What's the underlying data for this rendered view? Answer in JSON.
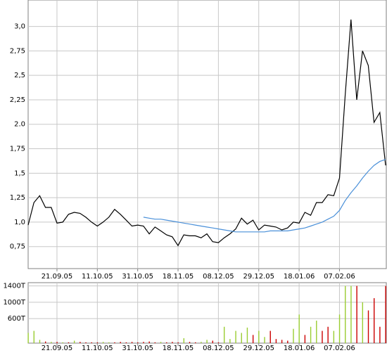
{
  "chart_data": [
    {
      "type": "line",
      "categories": [
        null,
        null,
        null,
        null,
        null,
        "21.09.05",
        null,
        null,
        null,
        null,
        null,
        null,
        "11.10.05",
        null,
        null,
        null,
        null,
        null,
        null,
        "31.10.05",
        null,
        null,
        null,
        null,
        null,
        null,
        "18.11.05",
        null,
        null,
        null,
        null,
        null,
        null,
        "08.12.05",
        null,
        null,
        null,
        null,
        null,
        null,
        "29.12.05",
        null,
        null,
        null,
        null,
        null,
        null,
        "18.01.06",
        null,
        null,
        null,
        null,
        null,
        null,
        "07.02.06",
        null,
        null,
        null,
        null,
        null,
        null,
        null,
        null
      ],
      "series": [
        {
          "color": "#000000",
          "values": [
            0.97,
            1.2,
            1.27,
            1.15,
            1.15,
            0.99,
            1.0,
            1.08,
            1.1,
            1.09,
            1.05,
            1.0,
            0.96,
            1.0,
            1.05,
            1.13,
            1.08,
            1.02,
            0.96,
            0.97,
            0.96,
            0.88,
            0.95,
            0.91,
            0.87,
            0.85,
            0.76,
            0.87,
            0.86,
            0.86,
            0.84,
            0.88,
            0.8,
            0.79,
            0.84,
            0.88,
            0.93,
            1.04,
            0.98,
            1.02,
            0.92,
            0.97,
            0.96,
            0.95,
            0.92,
            0.94,
            1.0,
            0.99,
            1.1,
            1.07,
            1.2,
            1.2,
            1.28,
            1.27,
            1.45,
            2.3,
            3.07,
            2.25,
            2.75,
            2.6,
            2.02,
            2.12,
            1.58
          ]
        },
        {
          "color": "#4a90d9",
          "values": [
            null,
            null,
            null,
            null,
            null,
            null,
            null,
            null,
            null,
            null,
            null,
            null,
            null,
            null,
            null,
            null,
            null,
            null,
            null,
            null,
            1.05,
            1.04,
            1.03,
            1.03,
            1.02,
            1.01,
            1.0,
            0.99,
            0.98,
            0.97,
            0.96,
            0.95,
            0.94,
            0.93,
            0.92,
            0.91,
            0.9,
            0.9,
            0.9,
            0.9,
            0.9,
            0.9,
            0.91,
            0.91,
            0.91,
            0.91,
            0.92,
            0.93,
            0.94,
            0.96,
            0.98,
            1.0,
            1.03,
            1.06,
            1.12,
            1.22,
            1.3,
            1.37,
            1.45,
            1.52,
            1.58,
            1.62,
            1.64
          ]
        }
      ],
      "ylim": [
        0.525,
        3.27
      ],
      "yticks": [
        {
          "value": 0.75,
          "label": "0,75"
        },
        {
          "value": 1.0,
          "label": "1,0"
        },
        {
          "value": 1.25,
          "label": "1,25"
        },
        {
          "value": 1.5,
          "label": "1,5"
        },
        {
          "value": 1.75,
          "label": "1,75"
        },
        {
          "value": 2.0,
          "label": "2.0"
        },
        {
          "value": 2.25,
          "label": "2,25"
        },
        {
          "value": 2.5,
          "label": "2,5"
        },
        {
          "value": 2.75,
          "label": "2,75"
        },
        {
          "value": 3.0,
          "label": "3,0"
        }
      ],
      "grid": true
    },
    {
      "type": "bar",
      "categories": [
        null,
        null,
        null,
        null,
        null,
        "21.09.05",
        null,
        null,
        null,
        null,
        null,
        null,
        "11.10.05",
        null,
        null,
        null,
        null,
        null,
        null,
        "31.10.05",
        null,
        null,
        null,
        null,
        null,
        null,
        "18.11.05",
        null,
        null,
        null,
        null,
        null,
        null,
        "08.12.05",
        null,
        null,
        null,
        null,
        null,
        null,
        "29.12.05",
        null,
        null,
        null,
        null,
        null,
        null,
        "18.01.06",
        null,
        null,
        null,
        null,
        null,
        null,
        "07.02.06",
        null,
        null,
        null,
        null,
        null,
        null,
        null,
        null
      ],
      "values": [
        250,
        300,
        80,
        40,
        30,
        30,
        20,
        20,
        60,
        30,
        20,
        20,
        20,
        30,
        20,
        20,
        30,
        20,
        30,
        20,
        30,
        40,
        20,
        30,
        20,
        30,
        20,
        120,
        30,
        20,
        30,
        80,
        60,
        20,
        400,
        100,
        300,
        250,
        380,
        200,
        300,
        150,
        300,
        100,
        80,
        60,
        350,
        700,
        200,
        400,
        550,
        300,
        400,
        300,
        700,
        1400,
        1400,
        1400,
        1000,
        800,
        1100,
        400,
        1400
      ],
      "colors": [
        "#9acd32",
        "#9acd32",
        "#9acd32",
        "#cc0000",
        "#9acd32",
        "#cc0000",
        "#9acd32",
        "#cc0000",
        "#9acd32",
        "#cc0000",
        "#cc0000",
        "#cc0000",
        "#cc0000",
        "#9acd32",
        "#9acd32",
        "#cc0000",
        "#cc0000",
        "#cc0000",
        "#cc0000",
        "#cc0000",
        "#cc0000",
        "#cc0000",
        "#cc0000",
        "#9acd32",
        "#cc0000",
        "#cc0000",
        "#cc0000",
        "#9acd32",
        "#cc0000",
        "#cc0000",
        "#9acd32",
        "#9acd32",
        "#cc0000",
        "#cc0000",
        "#9acd32",
        "#9acd32",
        "#9acd32",
        "#9acd32",
        "#9acd32",
        "#cc0000",
        "#9acd32",
        "#9acd32",
        "#cc0000",
        "#cc0000",
        "#cc0000",
        "#cc0000",
        "#9acd32",
        "#9acd32",
        "#cc0000",
        "#9acd32",
        "#9acd32",
        "#cc0000",
        "#cc0000",
        "#9acd32",
        "#9acd32",
        "#9acd32",
        "#9acd32",
        "#cc0000",
        "#9acd32",
        "#cc0000",
        "#cc0000",
        "#cc0000",
        "#cc0000"
      ],
      "ylim": [
        0,
        1480
      ],
      "yticks": [
        {
          "value": 600,
          "label": "600T"
        },
        {
          "value": 1000,
          "label": "1000T"
        },
        {
          "value": 1400,
          "label": "1400T"
        }
      ],
      "grid": true
    }
  ]
}
